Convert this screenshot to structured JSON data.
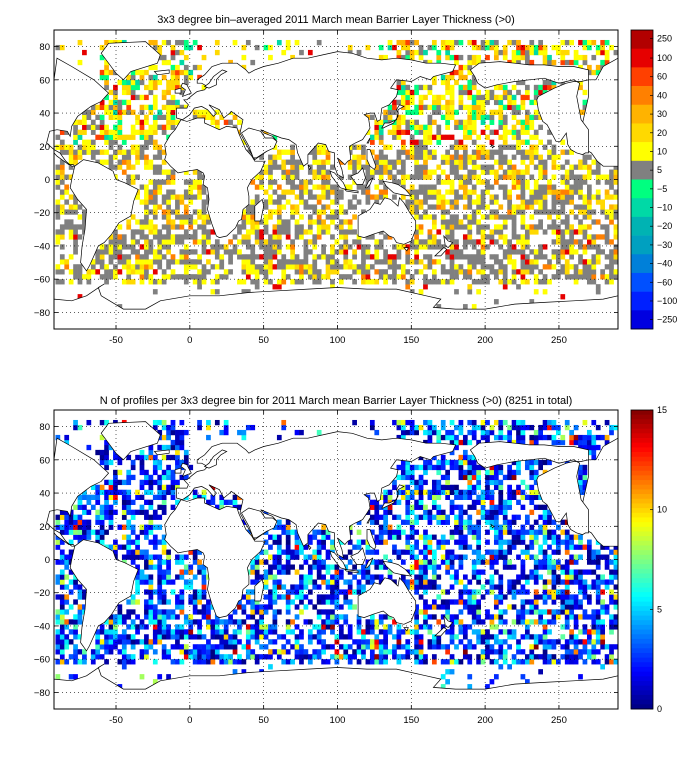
{
  "chart_data": [
    {
      "type": "heatmap",
      "title": "3x3 degree bin–averaged 2011 March mean Barrier Layer Thickness (>0)",
      "xlim": [
        -92,
        290
      ],
      "ylim": [
        -90,
        90
      ],
      "xticks": [
        "-50",
        "0",
        "50",
        "100",
        "150",
        "200",
        "250"
      ],
      "xtick_values": [
        -50,
        0,
        50,
        100,
        150,
        200,
        250
      ],
      "yticks": [
        "80",
        "60",
        "40",
        "20",
        "0",
        "−20",
        "−40",
        "−60",
        "−80"
      ],
      "ytick_values": [
        80,
        60,
        40,
        20,
        0,
        -20,
        -40,
        -60,
        -80
      ],
      "grid": true,
      "colorbar": {
        "labels": [
          "250",
          "100",
          "60",
          "40",
          "30",
          "20",
          "10",
          "5",
          "−5",
          "−10",
          "−20",
          "−30",
          "−40",
          "−60",
          "−100",
          "−250"
        ],
        "colors": [
          "#b20000",
          "#e60000",
          "#ff4000",
          "#ff8000",
          "#ffb300",
          "#ffd900",
          "#ffff00",
          "#808080",
          "#00ff80",
          "#00d9a6",
          "#00b3b3",
          "#00a0c0",
          "#0080d9",
          "#0050ff",
          "#0020ff",
          "#0000e0"
        ]
      }
    },
    {
      "type": "heatmap",
      "title": "N of profiles per 3x3 degree bin for 2011 March mean Barrier Layer Thickness (>0) (8251 in total)",
      "xlim": [
        -92,
        290
      ],
      "ylim": [
        -90,
        90
      ],
      "xticks": [
        "-50",
        "0",
        "50",
        "100",
        "150",
        "200",
        "250"
      ],
      "xtick_values": [
        -50,
        0,
        50,
        100,
        150,
        200,
        250
      ],
      "yticks": [
        "80",
        "60",
        "40",
        "20",
        "0",
        "−20",
        "−40",
        "−60",
        "−80"
      ],
      "ytick_values": [
        80,
        60,
        40,
        20,
        0,
        -20,
        -40,
        -60,
        -80
      ],
      "grid": true,
      "colorbar": {
        "range": [
          0,
          15
        ],
        "labels": [
          "15",
          "10",
          "5",
          "0"
        ],
        "label_values": [
          15,
          10,
          5,
          0
        ],
        "colormap": "jet"
      }
    }
  ]
}
